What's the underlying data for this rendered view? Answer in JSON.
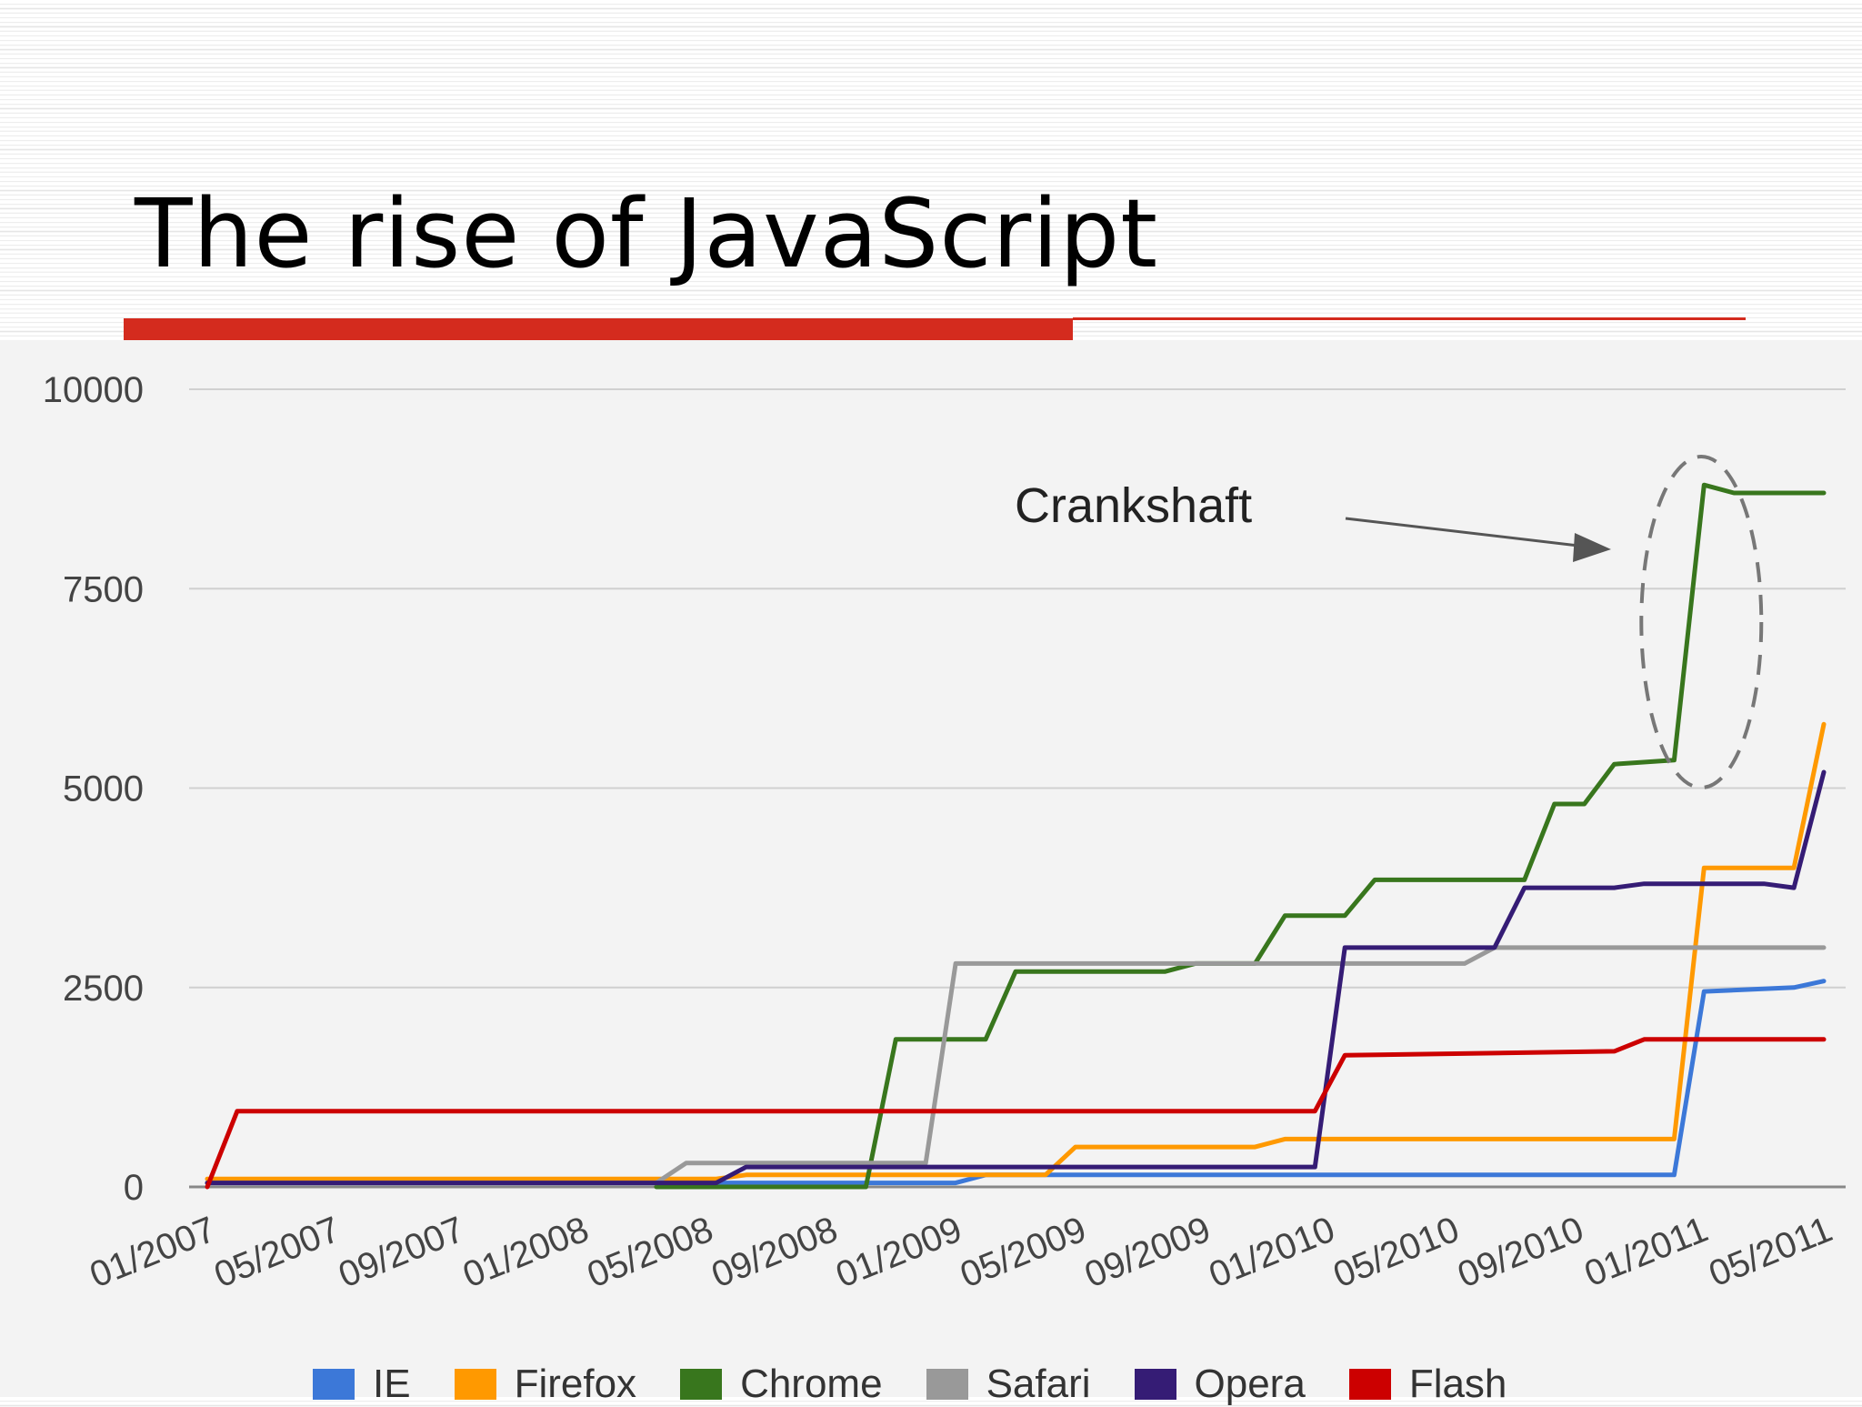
{
  "slide": {
    "title": "The rise of JavaScript"
  },
  "chart_data": {
    "type": "line",
    "title": "",
    "xlabel": "",
    "ylabel": "",
    "x_tick_labels": [
      "01/2007",
      "05/2007",
      "09/2007",
      "01/2008",
      "05/2008",
      "09/2008",
      "01/2009",
      "05/2009",
      "09/2009",
      "01/2010",
      "05/2010",
      "09/2010",
      "01/2011",
      "05/2011"
    ],
    "y_ticks": [
      0,
      2500,
      5000,
      7500,
      10000
    ],
    "ylim": [
      0,
      10000
    ],
    "grid": true,
    "legend_position": "bottom",
    "annotation": {
      "text": "Crankshaft",
      "target_series": "Chrome",
      "target_date": "03/2011"
    },
    "series": [
      {
        "name": "IE",
        "color": "#3c78d8",
        "points": [
          [
            "01/2007",
            50
          ],
          [
            "09/2008",
            50
          ],
          [
            "02/2009",
            50
          ],
          [
            "03/2009",
            150
          ],
          [
            "02/2011",
            150
          ],
          [
            "03/2011",
            2450
          ],
          [
            "06/2011",
            2500
          ],
          [
            "07/2011",
            2580
          ]
        ]
      },
      {
        "name": "Firefox",
        "color": "#ff9900",
        "points": [
          [
            "01/2007",
            100
          ],
          [
            "06/2008",
            100
          ],
          [
            "07/2008",
            150
          ],
          [
            "05/2009",
            150
          ],
          [
            "06/2009",
            500
          ],
          [
            "12/2009",
            500
          ],
          [
            "01/2010",
            600
          ],
          [
            "02/2011",
            600
          ],
          [
            "03/2011",
            4000
          ],
          [
            "06/2011",
            4000
          ],
          [
            "07/2011",
            5800
          ]
        ]
      },
      {
        "name": "Chrome",
        "color": "#38761d",
        "points": [
          [
            "04/2008",
            0
          ],
          [
            "11/2008",
            0
          ],
          [
            "12/2008",
            1850
          ],
          [
            "03/2009",
            1850
          ],
          [
            "04/2009",
            2700
          ],
          [
            "09/2009",
            2700
          ],
          [
            "10/2009",
            2800
          ],
          [
            "12/2009",
            2800
          ],
          [
            "01/2010",
            3400
          ],
          [
            "03/2010",
            3400
          ],
          [
            "04/2010",
            3850
          ],
          [
            "06/2010",
            3850
          ],
          [
            "09/2010",
            3850
          ],
          [
            "10/2010",
            4800
          ],
          [
            "11/2010",
            4800
          ],
          [
            "12/2010",
            5300
          ],
          [
            "02/2011",
            5350
          ],
          [
            "03/2011",
            8800
          ],
          [
            "04/2011",
            8700
          ],
          [
            "07/2011",
            8700
          ]
        ]
      },
      {
        "name": "Safari",
        "color": "#999999",
        "points": [
          [
            "01/2007",
            50
          ],
          [
            "04/2008",
            50
          ],
          [
            "05/2008",
            300
          ],
          [
            "01/2009",
            300
          ],
          [
            "02/2009",
            2800
          ],
          [
            "07/2010",
            2800
          ],
          [
            "08/2010",
            3000
          ],
          [
            "07/2011",
            3000
          ]
        ]
      },
      {
        "name": "Opera",
        "color": "#351c75",
        "points": [
          [
            "01/2007",
            50
          ],
          [
            "06/2008",
            50
          ],
          [
            "07/2008",
            250
          ],
          [
            "12/2009",
            250
          ],
          [
            "02/2010",
            250
          ],
          [
            "03/2010",
            3000
          ],
          [
            "08/2010",
            3000
          ],
          [
            "09/2010",
            3750
          ],
          [
            "12/2010",
            3750
          ],
          [
            "01/2011",
            3800
          ],
          [
            "05/2011",
            3800
          ],
          [
            "06/2011",
            3750
          ],
          [
            "07/2011",
            5200
          ]
        ]
      },
      {
        "name": "Flash",
        "color": "#cc0000",
        "points": [
          [
            "01/2007",
            0
          ],
          [
            "02/2007",
            950
          ],
          [
            "02/2010",
            950
          ],
          [
            "03/2010",
            1650
          ],
          [
            "12/2010",
            1700
          ],
          [
            "01/2011",
            1850
          ],
          [
            "07/2011",
            1850
          ]
        ]
      }
    ]
  }
}
